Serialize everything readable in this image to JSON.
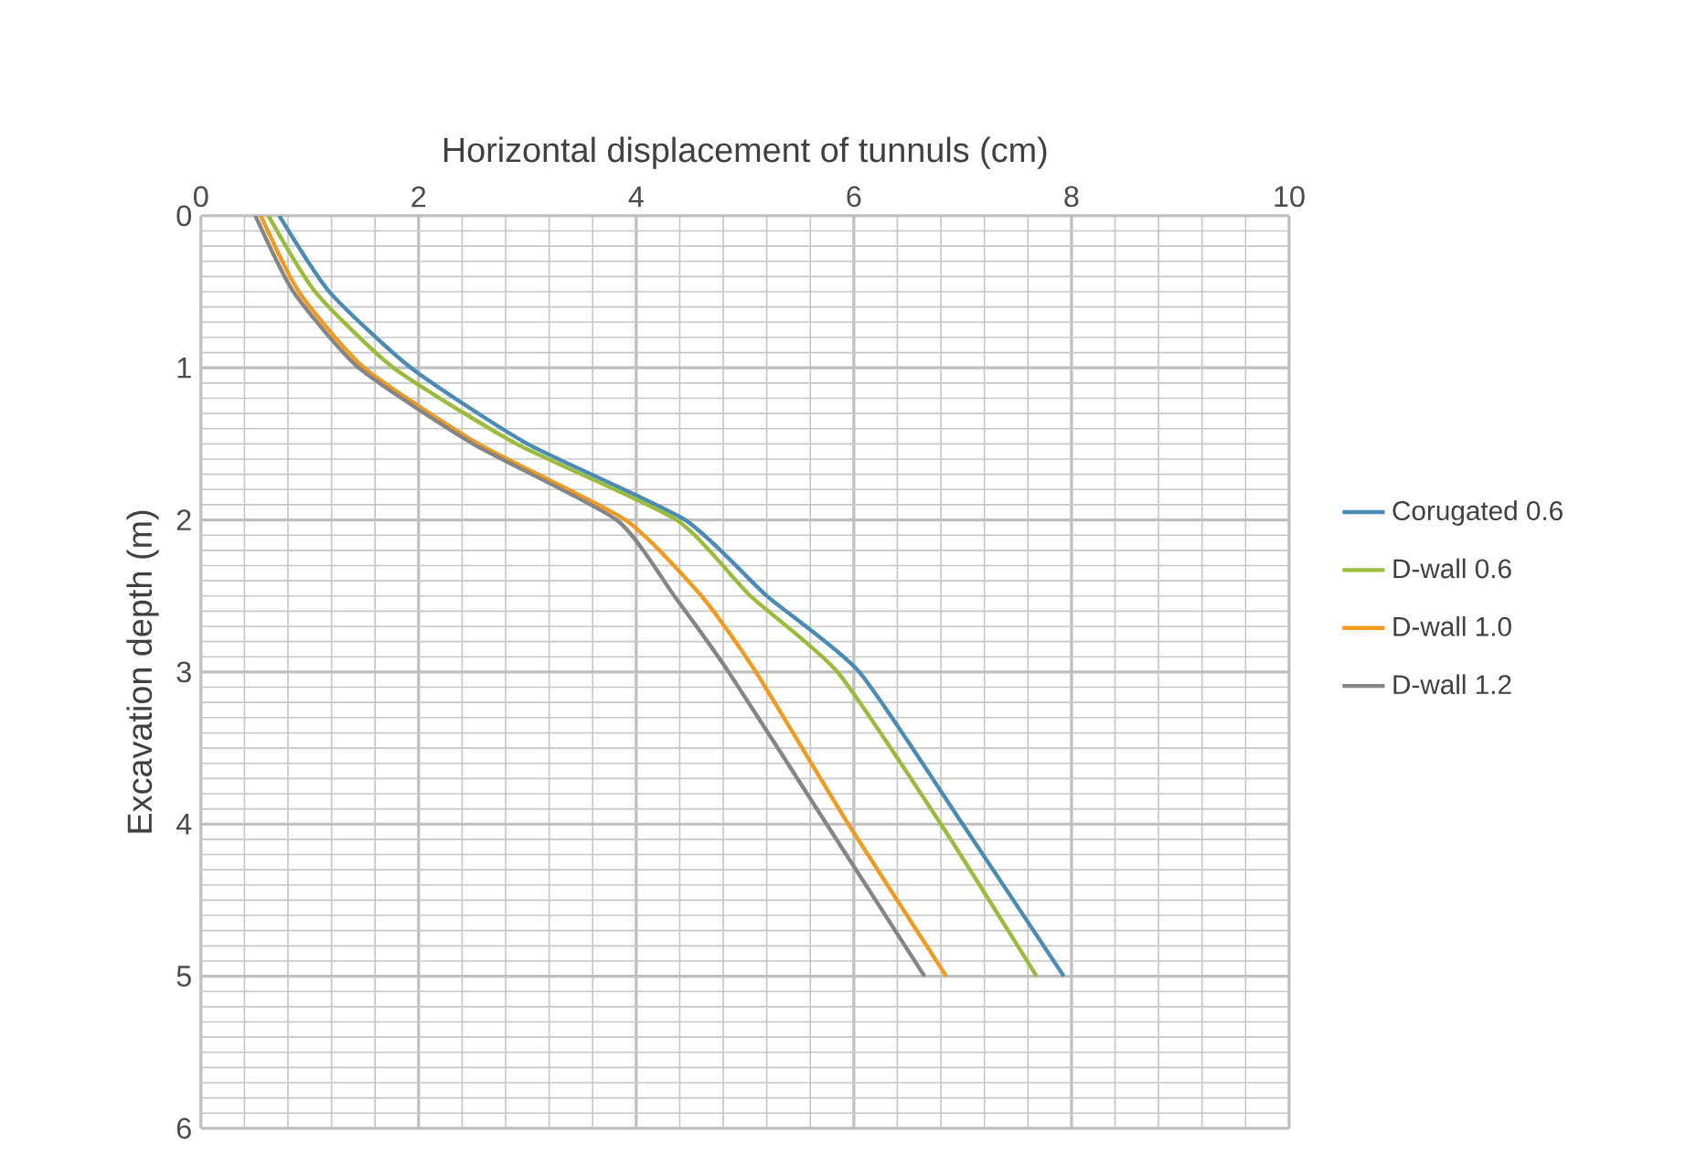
{
  "chart_data": {
    "type": "line",
    "xlabel": "Horizontal displacement of tunnuls (cm)",
    "ylabel": "Excavation depth (m)",
    "xlim": [
      0,
      10
    ],
    "xticks": [
      0,
      2,
      4,
      6,
      8,
      10
    ],
    "ylim": [
      6,
      0
    ],
    "yticks": [
      0,
      1,
      2,
      3,
      4,
      5,
      6
    ],
    "grid": true,
    "legend": "right",
    "marker": "none",
    "line_style": "solid",
    "series": [
      {
        "name": "Corugated 0.6",
        "color": "#4a8bb5",
        "x": [
          0.72,
          1.18,
          1.93,
          3.0,
          4.45,
          5.2,
          6.05,
          7.0,
          7.93
        ],
        "values": [
          0,
          0.5,
          1,
          1.5,
          2,
          2.5,
          3,
          4,
          5
        ]
      },
      {
        "name": "D-wall 0.6",
        "color": "#9bbb3a",
        "x": [
          0.62,
          1.05,
          1.77,
          2.9,
          4.37,
          5.05,
          5.85,
          6.8,
          7.68
        ],
        "values": [
          0,
          0.5,
          1,
          1.5,
          2,
          2.5,
          3,
          4,
          5
        ]
      },
      {
        "name": "D-wall 1.0",
        "color": "#f39a1e",
        "x": [
          0.55,
          0.9,
          1.5,
          2.55,
          3.9,
          4.6,
          5.1,
          5.95,
          6.85
        ],
        "values": [
          0,
          0.5,
          1,
          1.5,
          2,
          2.5,
          3,
          4,
          5
        ]
      },
      {
        "name": "D-wall 1.2",
        "color": "#858585",
        "x": [
          0.5,
          0.85,
          1.45,
          2.5,
          3.82,
          4.35,
          4.85,
          5.75,
          6.65
        ],
        "values": [
          0,
          0.5,
          1,
          1.5,
          2,
          2.5,
          3,
          4,
          5
        ]
      }
    ]
  }
}
